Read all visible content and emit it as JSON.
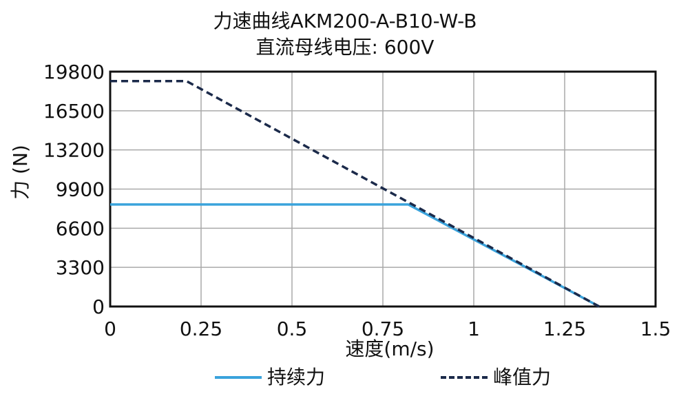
{
  "chart_data": {
    "type": "line",
    "title": "力速曲线AKM200-A-B10-W-B",
    "subtitle": "直流母线电压: 600V",
    "xlabel": "速度(m/s)",
    "ylabel": "力 (N)",
    "xlim": [
      0,
      1.5
    ],
    "ylim": [
      0,
      19800
    ],
    "xticks": [
      0,
      0.25,
      0.5,
      0.75,
      1,
      1.25,
      1.5
    ],
    "xtick_labels": [
      "0",
      "0.25",
      "0.5",
      "0.75",
      "1",
      "1.25",
      "1.5"
    ],
    "yticks": [
      0,
      3300,
      6600,
      9900,
      13200,
      16500,
      19800
    ],
    "ytick_labels": [
      "0",
      "3300",
      "6600",
      "9900",
      "13200",
      "16500",
      "19800"
    ],
    "grid": true,
    "legend_position": "bottom",
    "series": [
      {
        "name": "持续力",
        "style": "solid",
        "color": "#3aa3dc",
        "points": [
          [
            0,
            8600
          ],
          [
            0.82,
            8600
          ],
          [
            1.345,
            0
          ]
        ]
      },
      {
        "name": "峰值力",
        "style": "dashed",
        "color": "#1b2a4a",
        "points": [
          [
            0,
            19000
          ],
          [
            0.21,
            19000
          ],
          [
            1.345,
            0
          ]
        ]
      }
    ]
  }
}
